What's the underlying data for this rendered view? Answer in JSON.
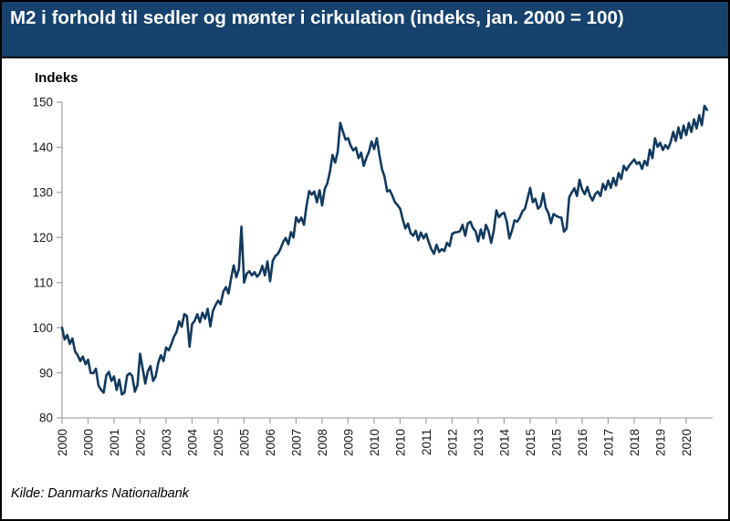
{
  "header": {
    "title": "M2 i forhold til sedler og mønter i cirkulation (indeks, jan. 2000 = 100)",
    "background_color": "#16426d",
    "text_color": "#ffffff"
  },
  "footer": {
    "source": "Kilde: Danmarks Nationalbank"
  },
  "chart_data": {
    "type": "line",
    "title": "M2 i forhold til sedler og mønter i cirkulation (indeks, jan. 2000 = 100)",
    "ylabel": "Indeks",
    "xlabel": "",
    "ylim": [
      80,
      150
    ],
    "yticks": [
      80,
      90,
      100,
      110,
      120,
      130,
      140,
      150
    ],
    "x_start": "2000-01",
    "x_frequency": "monthly",
    "xtick_months": [
      0,
      10,
      20,
      30,
      40,
      50,
      60,
      70,
      80,
      90,
      100,
      110,
      120,
      130,
      140,
      150,
      160,
      170,
      180,
      190,
      200,
      210,
      220,
      230,
      240
    ],
    "xtick_labels": [
      "2000",
      "2000",
      "2001",
      "2002",
      "2003",
      "2004",
      "2005",
      "2005",
      "2006",
      "2007",
      "2008",
      "2009",
      "2010",
      "2010",
      "2011",
      "2012",
      "2013",
      "2014",
      "2015",
      "2015",
      "2016",
      "2017",
      "2018",
      "2019",
      "2020"
    ],
    "grid": false,
    "legend": "none",
    "line_color": "#123a5e",
    "axis_color": "#a6a6a6",
    "tick_label_color": "#1a1a1a",
    "series": [
      {
        "name": "M2 i forhold til sedler og mønter i cirkulation (indeks, jan. 2000 = 100)",
        "values": [
          100.0,
          97.4,
          98.4,
          96.4,
          97.6,
          94.7,
          93.9,
          92.6,
          93.6,
          91.9,
          92.9,
          90.0,
          89.9,
          90.9,
          87.2,
          86.2,
          85.6,
          89.4,
          90.2,
          88.2,
          89.2,
          86.2,
          88.5,
          85.2,
          85.6,
          89.4,
          89.9,
          89.3,
          85.8,
          87.3,
          94.2,
          90.9,
          87.6,
          90.4,
          91.5,
          88.2,
          89.2,
          92.2,
          93.9,
          92.6,
          95.6,
          95.0,
          96.3,
          98.0,
          99.0,
          101.4,
          100.2,
          103.0,
          102.6,
          95.8,
          100.8,
          101.5,
          103.0,
          101.2,
          103.3,
          102.0,
          104.2,
          100.3,
          103.7,
          105.0,
          106.0,
          105.2,
          108.0,
          109.0,
          107.6,
          111.0,
          113.8,
          111.2,
          113.0,
          122.4,
          110.0,
          112.0,
          112.5,
          111.6,
          112.3,
          111.3,
          112.0,
          113.7,
          111.6,
          114.7,
          110.3,
          114.8,
          115.9,
          116.4,
          117.5,
          119.0,
          119.9,
          118.5,
          121.2,
          120.0,
          124.5,
          123.4,
          124.4,
          122.8,
          127.0,
          130.3,
          129.5,
          130.2,
          127.8,
          130.5,
          127.1,
          130.8,
          132.0,
          134.6,
          138.3,
          136.6,
          139.0,
          145.4,
          143.5,
          141.7,
          142.0,
          140.3,
          139.3,
          139.9,
          137.6,
          138.8,
          135.9,
          137.6,
          139.0,
          141.3,
          139.6,
          142.0,
          138.4,
          135.2,
          133.5,
          130.2,
          130.5,
          129.3,
          127.8,
          127.2,
          126.4,
          124.0,
          122.0,
          123.1,
          121.0,
          120.4,
          121.5,
          119.4,
          121.1,
          119.8,
          120.8,
          118.9,
          117.4,
          116.4,
          118.4,
          116.8,
          117.4,
          117.0,
          118.8,
          118.1,
          120.8,
          121.1,
          121.2,
          121.4,
          122.8,
          120.4,
          123.1,
          123.5,
          122.1,
          121.4,
          119.1,
          121.8,
          119.8,
          122.8,
          121.4,
          118.8,
          121.5,
          126.0,
          124.5,
          125.2,
          125.5,
          123.5,
          119.8,
          121.5,
          123.8,
          123.5,
          124.4,
          125.8,
          126.4,
          128.7,
          131.0,
          127.8,
          128.6,
          126.4,
          127.0,
          129.8,
          126.6,
          125.4,
          123.2,
          125.2,
          124.8,
          124.5,
          124.4,
          121.3,
          122.0,
          128.9,
          130.0,
          130.9,
          129.2,
          132.8,
          130.6,
          129.6,
          131.2,
          129.2,
          128.2,
          129.6,
          130.2,
          129.2,
          131.9,
          130.6,
          132.6,
          131.0,
          133.2,
          131.5,
          134.3,
          133.0,
          135.9,
          134.9,
          135.9,
          136.6,
          137.3,
          136.3,
          136.7,
          135.2,
          137.0,
          136.0,
          139.5,
          137.6,
          142.0,
          140.1,
          141.0,
          139.4,
          140.5,
          139.7,
          141.1,
          143.4,
          141.4,
          144.4,
          142.0,
          144.8,
          142.7,
          145.4,
          143.4,
          146.2,
          144.2,
          147.1,
          144.9,
          149.2,
          148.3
        ]
      }
    ]
  }
}
